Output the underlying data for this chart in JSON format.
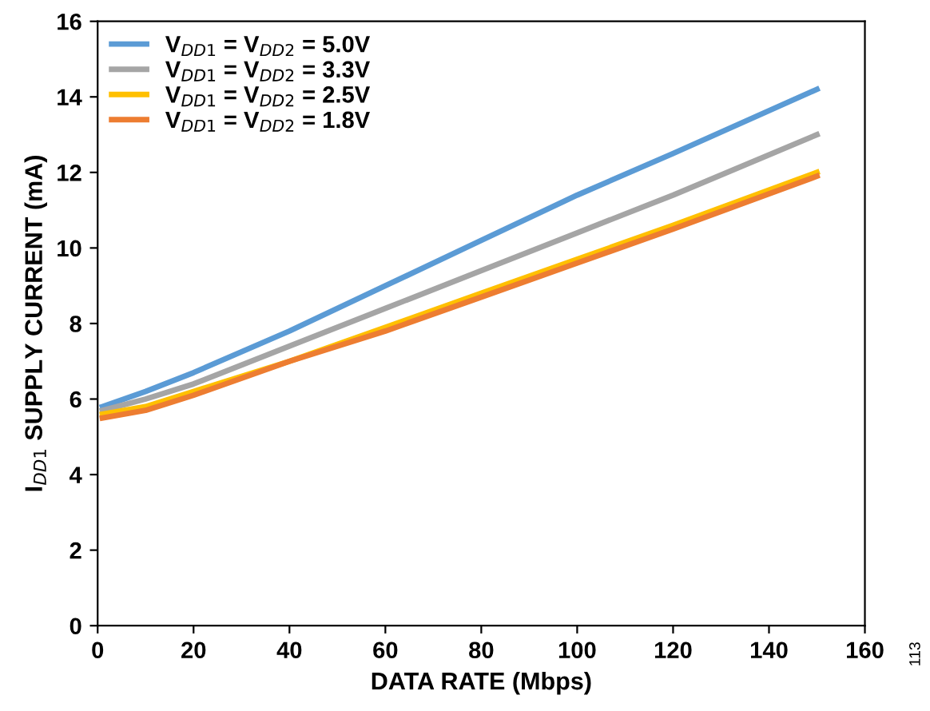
{
  "chart_data": {
    "type": "line",
    "xlabel": "DATA RATE (Mbps)",
    "ylabel": "I$_{DD1}$ SUPPLY CURRENT (mA)",
    "x": [
      1,
      10,
      20,
      40,
      60,
      80,
      100,
      120,
      150
    ],
    "series": [
      {
        "name": "V$_{DD1}$ = V$_{DD2}$ = 5.0V",
        "color": "#5b9bd5",
        "values": [
          5.8,
          6.2,
          6.7,
          7.8,
          9.0,
          10.2,
          11.4,
          12.5,
          14.2
        ]
      },
      {
        "name": "V$_{DD1}$ = V$_{DD2}$ = 3.3V",
        "color": "#a5a5a5",
        "values": [
          5.7,
          6.0,
          6.4,
          7.4,
          8.4,
          9.4,
          10.4,
          11.4,
          13.0
        ]
      },
      {
        "name": "V$_{DD1}$ = V$_{DD2}$ = 2.5V",
        "color": "#ffc000",
        "values": [
          5.6,
          5.8,
          6.2,
          7.0,
          7.9,
          8.8,
          9.7,
          10.6,
          12.0
        ]
      },
      {
        "name": "V$_{DD1}$ = V$_{DD2}$ = 1.8V",
        "color": "#ed7d31",
        "values": [
          5.5,
          5.7,
          6.1,
          7.0,
          7.8,
          8.7,
          9.6,
          10.5,
          11.9
        ]
      }
    ],
    "xlim": [
      0,
      160
    ],
    "xticks": [
      0,
      20,
      40,
      60,
      80,
      100,
      120,
      140,
      160
    ],
    "ylim": [
      0,
      16
    ],
    "yticks": [
      0,
      2,
      4,
      6,
      8,
      10,
      12,
      14,
      16
    ],
    "grid": false,
    "legend": "top left",
    "marker": "none",
    "line_style": "solid",
    "annotations": [
      "113"
    ]
  }
}
